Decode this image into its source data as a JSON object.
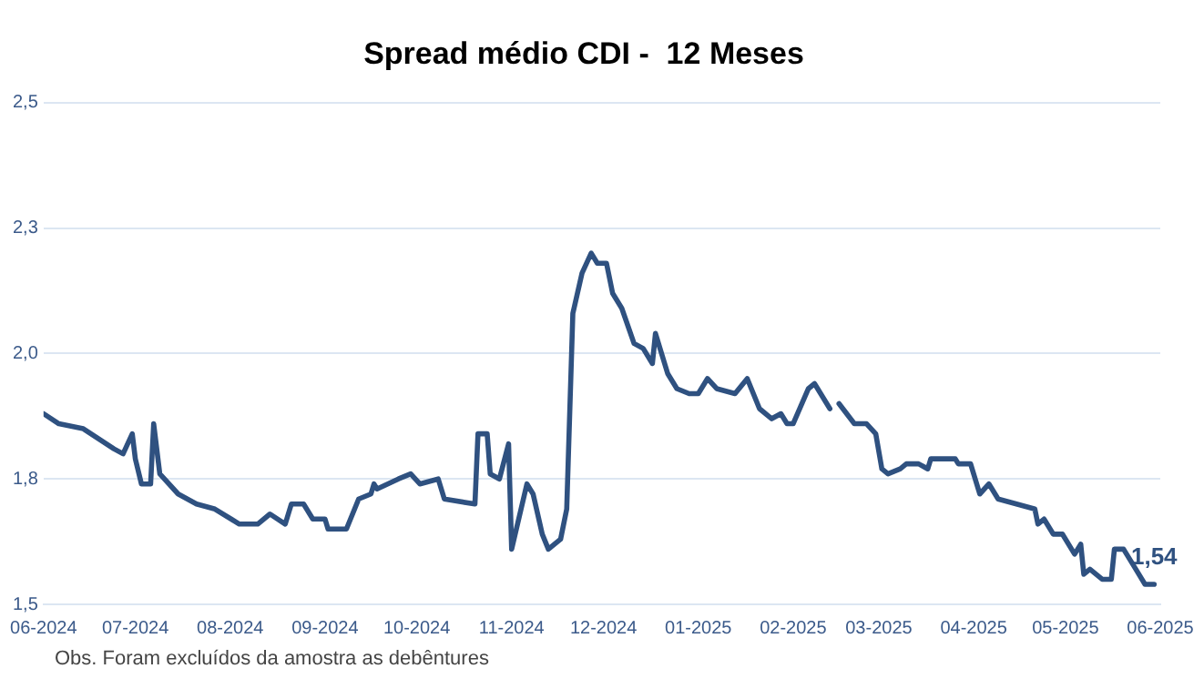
{
  "chart_data": {
    "type": "line",
    "title": "Spread médio CDI -  12 Meses",
    "x": [
      "2024-06-01",
      "2024-06-06",
      "2024-06-14",
      "2024-06-24",
      "2024-06-27",
      "2024-06-30",
      "2024-07-01",
      "2024-07-03",
      "2024-07-06",
      "2024-07-07",
      "2024-07-09",
      "2024-07-15",
      "2024-07-21",
      "2024-07-27",
      "2024-08-04",
      "2024-08-10",
      "2024-08-14",
      "2024-08-19",
      "2024-08-21",
      "2024-08-25",
      "2024-08-28",
      "2024-09-01",
      "2024-09-02",
      "2024-09-08",
      "2024-09-12",
      "2024-09-16",
      "2024-09-17",
      "2024-09-18",
      "2024-09-25",
      "2024-09-29",
      "2024-10-02",
      "2024-10-08",
      "2024-10-10",
      "2024-10-20",
      "2024-10-21",
      "2024-10-24",
      "2024-10-25",
      "2024-10-28",
      "2024-10-31",
      "2024-11-01",
      "2024-11-06",
      "2024-11-08",
      "2024-11-11",
      "2024-11-13",
      "2024-11-17",
      "2024-11-19",
      "2024-11-21",
      "2024-11-24",
      "2024-11-27",
      "2024-11-29",
      "2024-12-02",
      "2024-12-04",
      "2024-12-07",
      "2024-12-11",
      "2024-12-14",
      "2024-12-17",
      "2024-12-18",
      "2024-12-22",
      "2024-12-25",
      "2024-12-29",
      "2025-01-01",
      "2025-01-04",
      "2025-01-07",
      "2025-01-13",
      "2025-01-17",
      "2025-01-21",
      "2025-01-25",
      "2025-01-28",
      "2025-01-30",
      "2025-02-01",
      "2025-02-06",
      "2025-02-08",
      "2025-02-11",
      "2025-02-13",
      "2025-02-15",
      "2025-02-16",
      "2025-02-21",
      "2025-02-25",
      "2025-02-28",
      "2025-03-02",
      "2025-03-04",
      "2025-03-08",
      "2025-03-10",
      "2025-03-14",
      "2025-03-17",
      "2025-03-18",
      "2025-03-26",
      "2025-03-27",
      "2025-03-31",
      "2025-04-03",
      "2025-04-06",
      "2025-04-09",
      "2025-04-15",
      "2025-04-21",
      "2025-04-22",
      "2025-04-24",
      "2025-04-27",
      "2025-04-30",
      "2025-05-04",
      "2025-05-06",
      "2025-05-07",
      "2025-05-09",
      "2025-05-13",
      "2025-05-16",
      "2025-05-17",
      "2025-05-20",
      "2025-05-24",
      "2025-05-27",
      "2025-05-30"
    ],
    "series": [
      {
        "color": "#2f5180",
        "values": [
          1.88,
          1.86,
          1.85,
          1.81,
          1.8,
          1.84,
          1.79,
          1.74,
          1.74,
          1.86,
          1.76,
          1.72,
          1.7,
          1.69,
          1.66,
          1.66,
          1.68,
          1.66,
          1.7,
          1.7,
          1.67,
          1.67,
          1.65,
          1.65,
          1.71,
          1.72,
          1.74,
          1.73,
          1.75,
          1.76,
          1.74,
          1.75,
          1.71,
          1.7,
          1.84,
          1.84,
          1.76,
          1.75,
          1.82,
          1.61,
          1.74,
          1.72,
          1.64,
          1.61,
          1.63,
          1.69,
          2.08,
          2.16,
          2.2,
          2.18,
          2.18,
          2.12,
          2.09,
          2.02,
          2.01,
          1.98,
          2.04,
          1.96,
          1.93,
          1.92,
          1.92,
          1.95,
          1.93,
          1.92,
          1.95,
          1.89,
          1.87,
          1.88,
          1.86,
          1.86,
          1.93,
          1.94,
          1.91,
          1.89,
          null,
          1.9,
          1.86,
          1.86,
          1.84,
          1.77,
          1.76,
          1.77,
          1.78,
          1.78,
          1.77,
          1.79,
          1.79,
          1.78,
          1.78,
          1.72,
          1.74,
          1.71,
          1.7,
          1.69,
          1.66,
          1.67,
          1.64,
          1.64,
          1.6,
          1.62,
          1.56,
          1.57,
          1.55,
          1.55,
          1.61,
          1.61,
          1.57,
          1.54,
          1.54
        ]
      }
    ],
    "xlim": [
      "2024-06-01",
      "2025-06-01"
    ],
    "xticks": [
      {
        "value": "2024-06-01",
        "label": "06-2024"
      },
      {
        "value": "2024-07-01",
        "label": "07-2024"
      },
      {
        "value": "2024-08-01",
        "label": "08-2024"
      },
      {
        "value": "2024-09-01",
        "label": "09-2024"
      },
      {
        "value": "2024-10-01",
        "label": "10-2024"
      },
      {
        "value": "2024-11-01",
        "label": "11-2024"
      },
      {
        "value": "2024-12-01",
        "label": "12-2024"
      },
      {
        "value": "2025-01-01",
        "label": "01-2025"
      },
      {
        "value": "2025-02-01",
        "label": "02-2025"
      },
      {
        "value": "2025-03-01",
        "label": "03-2025"
      },
      {
        "value": "2025-04-01",
        "label": "04-2025"
      },
      {
        "value": "2025-05-01",
        "label": "05-2025"
      },
      {
        "value": "2025-06-01",
        "label": "06-2025"
      }
    ],
    "ylim": [
      1.5,
      2.5
    ],
    "yticks": [
      {
        "value": 1.5,
        "label": "1,5"
      },
      {
        "value": 1.75,
        "label": "1,8"
      },
      {
        "value": 2.0,
        "label": "2,0"
      },
      {
        "value": 2.25,
        "label": "2,3"
      },
      {
        "value": 2.5,
        "label": "2,5"
      }
    ],
    "grid": "y",
    "legend": false,
    "marker": "none",
    "line_style": "solid",
    "annotations": [
      {
        "text": "1,54",
        "x": "2025-05-30",
        "y": 1.54
      },
      "Obs. Foram excluídos da amostra as debêntures"
    ]
  }
}
